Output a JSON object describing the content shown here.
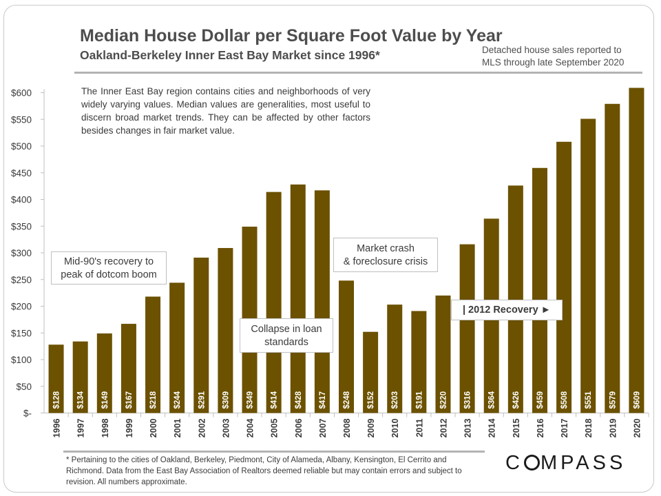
{
  "header": {
    "title": "Median House Dollar per Square Foot Value by Year",
    "subtitle": "Oakland-Berkeley  Inner East Bay Market  since 1996*",
    "source_note_line1": "Detached house sales reported to",
    "source_note_line2": "MLS through late September 2020"
  },
  "description": "The Inner East Bay region contains cities and neighborhoods of very widely varying values. Median values are generalities, most useful to discern broad market trends. They can be affected by other factors besides changes in fair market value.",
  "annotations": {
    "dotcom_line1": "Mid-90's recovery to",
    "dotcom_line2": "peak of dotcom boom",
    "collapse_line1": "Collapse in loan",
    "collapse_line2": "standards",
    "crash_line1": "Market crash",
    "crash_line2": "& foreclosure crisis",
    "recovery": "| 2012 Recovery ►"
  },
  "footnote": "* Pertaining to the cities of Oakland, Berkeley, Piedmont, City of Alameda, Albany, Kensington, El Cerrito and Richmond. Data from the East Bay Association of Realtors deemed reliable but may contain errors and subject to revision. All numbers approximate.",
  "brand": {
    "logo_left": "C",
    "logo_right": "MPASS"
  },
  "chart_data": {
    "type": "bar",
    "categories": [
      "1996",
      "1997",
      "1998",
      "1999",
      "2000",
      "2001",
      "2002",
      "2003",
      "2004",
      "2005",
      "2006",
      "2007",
      "2008",
      "2009",
      "2010",
      "2011",
      "2012",
      "2013",
      "2014",
      "2015",
      "2016",
      "2017",
      "2018",
      "2019",
      "2020"
    ],
    "values": [
      128,
      134,
      149,
      167,
      218,
      244,
      291,
      309,
      349,
      414,
      428,
      417,
      248,
      152,
      203,
      191,
      220,
      316,
      364,
      426,
      459,
      508,
      551,
      579,
      609
    ],
    "data_labels": [
      "$128",
      "$134",
      "$149",
      "$167",
      "$218",
      "$244",
      "$291",
      "$309",
      "$349",
      "$414",
      "$428",
      "$417",
      "$248",
      "$152",
      "$203",
      "$191",
      "$220",
      "$316",
      "$364",
      "$426",
      "$459",
      "$508",
      "$551",
      "$579",
      "$609"
    ],
    "ylim": [
      0,
      600
    ],
    "yticks": [
      0,
      50,
      100,
      150,
      200,
      250,
      300,
      350,
      400,
      450,
      500,
      550,
      600
    ],
    "ytick_labels": [
      "$-",
      "$50",
      "$100",
      "$150",
      "$200",
      "$250",
      "$300",
      "$350",
      "$400",
      "$450",
      "$500",
      "$550",
      "$600"
    ],
    "bar_color": "#6b5100",
    "grid": false,
    "legend": "none"
  }
}
